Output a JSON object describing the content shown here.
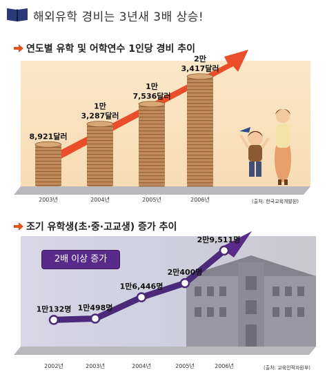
{
  "page": {
    "title": "해외유학 경비는 3년새 3배 상승!",
    "icons": [
      "book-icon",
      "arrow-bullet-icon"
    ]
  },
  "chart_data": [
    {
      "type": "bar",
      "title": "연도별 유학 및 어학연수 1인당 경비 추이",
      "categories": [
        "2003년",
        "2004년",
        "2005년",
        "2006년"
      ],
      "values": [
        8921,
        13287,
        17536,
        23417
      ],
      "data_labels": [
        [
          "8,921달러"
        ],
        [
          "1만",
          "3,287달러"
        ],
        [
          "1만",
          "7,536달러"
        ],
        [
          "2만",
          "3,417달러"
        ]
      ],
      "source": "(출처: 한국교육개발원)",
      "colors": {
        "coin": "#c08a5a",
        "arrow": "#e8401c",
        "panel": "#f8dfb8"
      }
    },
    {
      "type": "line",
      "title": "조기 유학생(초·중·고교생) 증가 추이",
      "categories": [
        "2002년",
        "2003년",
        "2004년",
        "2005년",
        "2006년"
      ],
      "values": [
        10132,
        10498,
        16446,
        20400,
        29511
      ],
      "data_labels": [
        "1만132명",
        "1만498명",
        "1만6,446명",
        "2만400명",
        "2만9,511명"
      ],
      "badge": "2배 이상 증가",
      "source": "(출처: 교육인적자원부)",
      "colors": {
        "line": "#4b2a7a",
        "arrow": "#5a2a8a",
        "panel": "#d4d2e2"
      }
    }
  ]
}
